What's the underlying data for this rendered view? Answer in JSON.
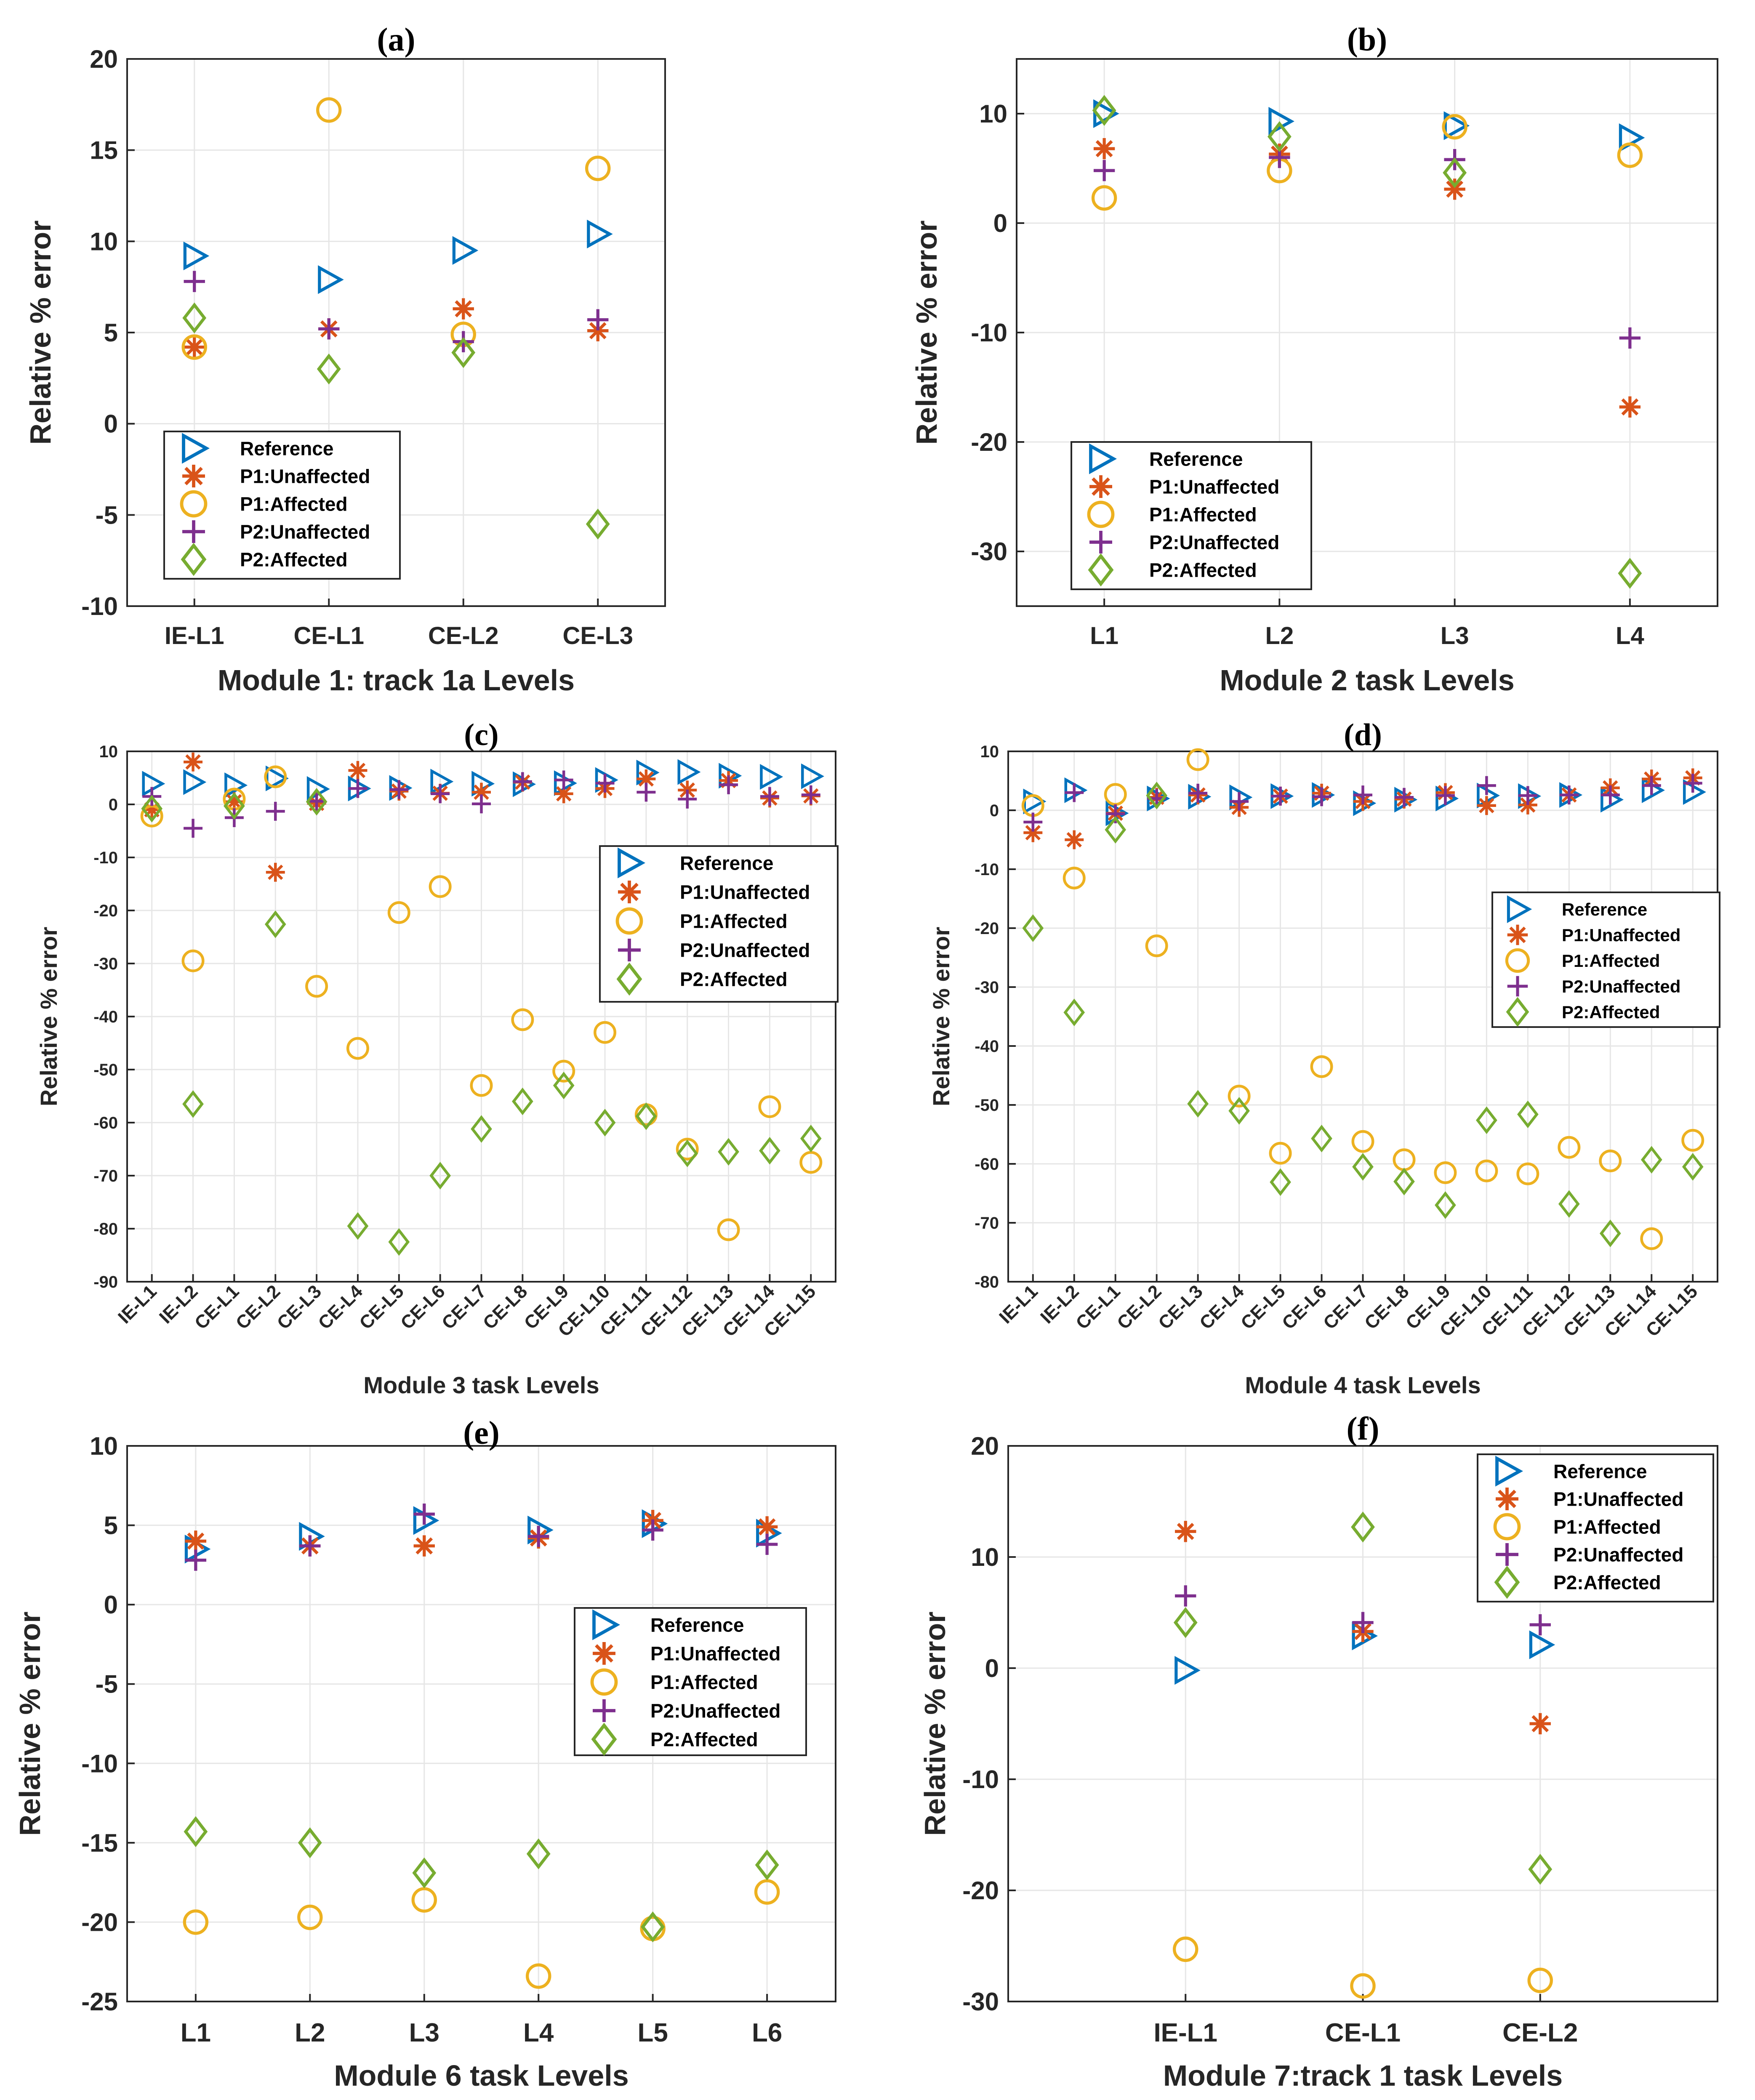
{
  "series_styles": [
    {
      "name": "Reference",
      "marker": "triangle-right",
      "color": "#0072BD"
    },
    {
      "name": "P1:Unaffected",
      "marker": "asterisk",
      "color": "#D95319"
    },
    {
      "name": "P1:Affected",
      "marker": "circle",
      "color": "#EDB120"
    },
    {
      "name": "P2:Unaffected",
      "marker": "plus",
      "color": "#7E2F8E"
    },
    {
      "name": "P2:Affected",
      "marker": "diamond",
      "color": "#77AC30"
    }
  ],
  "chart_data": [
    {
      "panel": "(a)",
      "type": "scatter",
      "xlabel": "Module 1: track 1a Levels",
      "ylabel": "Relative % error",
      "categories": [
        "IE-L1",
        "CE-L1",
        "CE-L2",
        "CE-L3"
      ],
      "ylim": [
        -10,
        20
      ],
      "yticks": [
        "20",
        "15",
        "10",
        "5",
        "0",
        "-5",
        "-10"
      ],
      "legend": "bottom-left",
      "series": [
        {
          "name": "Reference",
          "values": [
            9.2,
            7.9,
            9.5,
            10.4
          ]
        },
        {
          "name": "P1:Unaffected",
          "values": [
            4.2,
            5.2,
            6.3,
            5.1
          ]
        },
        {
          "name": "P1:Affected",
          "values": [
            4.2,
            17.2,
            4.9,
            14.0
          ]
        },
        {
          "name": "P2:Unaffected",
          "values": [
            7.8,
            5.2,
            4.5,
            5.7
          ]
        },
        {
          "name": "P2:Affected",
          "values": [
            5.8,
            3.0,
            3.9,
            -5.5
          ]
        }
      ]
    },
    {
      "panel": "(b)",
      "type": "scatter",
      "xlabel": "Module 2 task Levels",
      "ylabel": "Relative % error",
      "categories": [
        "L1",
        "L2",
        "L3",
        "L4"
      ],
      "ylim": [
        -35,
        15
      ],
      "yticks": [
        "10",
        "0",
        "-10",
        "-20",
        "-30"
      ],
      "legend": "bottom-left",
      "series": [
        {
          "name": "Reference",
          "values": [
            10.0,
            9.3,
            8.9,
            7.8
          ]
        },
        {
          "name": "P1:Unaffected",
          "values": [
            6.8,
            6.3,
            3.1,
            -16.8
          ]
        },
        {
          "name": "P1:Affected",
          "values": [
            2.3,
            4.8,
            8.8,
            6.2
          ]
        },
        {
          "name": "P2:Unaffected",
          "values": [
            4.8,
            6.0,
            5.8,
            -10.5
          ]
        },
        {
          "name": "P2:Affected",
          "values": [
            10.3,
            7.9,
            4.6,
            -32.0
          ]
        }
      ]
    },
    {
      "panel": "(c)",
      "type": "scatter",
      "xlabel": "Module 3 task Levels",
      "ylabel": "Relative % error",
      "categories": [
        "IE-L1",
        "IE-L2",
        "CE-L1",
        "CE-L2",
        "CE-L3",
        "CE-L4",
        "CE-L5",
        "CE-L6",
        "CE-L7",
        "CE-L8",
        "CE-L9",
        "CE-L10",
        "CE-L11",
        "CE-L12",
        "CE-L13",
        "CE-L14",
        "CE-L15"
      ],
      "ylim": [
        -90,
        10
      ],
      "yticks": [
        "10",
        "0",
        "-10",
        "-20",
        "-30",
        "-40",
        "-50",
        "-60",
        "-70",
        "-80",
        "-90"
      ],
      "legend": "upper-right",
      "series": [
        {
          "name": "Reference",
          "values": [
            3.9,
            4.2,
            3.6,
            4.9,
            2.9,
            3.0,
            3.1,
            4.3,
            3.9,
            3.8,
            4.0,
            4.6,
            6.0,
            6.1,
            5.4,
            5.2,
            5.3
          ]
        },
        {
          "name": "P1:Unaffected",
          "values": [
            -1.0,
            8.0,
            0.5,
            -12.8,
            0.2,
            6.4,
            2.5,
            2.1,
            2.3,
            4.2,
            2.0,
            3.0,
            4.8,
            2.7,
            4.5,
            1.2,
            1.6
          ]
        },
        {
          "name": "P1:Affected",
          "values": [
            -2.2,
            -29.5,
            1.0,
            5.2,
            -34.3,
            -46.0,
            -20.4,
            -15.5,
            -53.0,
            -40.6,
            -50.3,
            -43.0,
            -58.5,
            -65.0,
            -80.2,
            -57.0,
            -67.5
          ]
        },
        {
          "name": "P2:Unaffected",
          "values": [
            1.5,
            -4.5,
            -2.5,
            -1.3,
            0.6,
            3.0,
            2.8,
            2.0,
            0.1,
            4.3,
            4.6,
            4.0,
            2.3,
            1.0,
            3.7,
            1.5,
            1.8
          ]
        },
        {
          "name": "P2:Affected",
          "values": [
            -0.8,
            -56.5,
            -0.3,
            -22.6,
            0.5,
            -79.5,
            -82.5,
            -70.0,
            -61.2,
            -56.0,
            -53.0,
            -60.0,
            -58.8,
            -65.8,
            -65.5,
            -65.3,
            -63.0
          ]
        }
      ]
    },
    {
      "panel": "(d)",
      "type": "scatter",
      "xlabel": "Module 4 task Levels",
      "ylabel": "Relative % error",
      "categories": [
        "IE-L1",
        "IE-L2",
        "CE-L1",
        "CE-L2",
        "CE-L3",
        "CE-L4",
        "CE-L5",
        "CE-L6",
        "CE-L7",
        "CE-L8",
        "CE-L9",
        "CE-L10",
        "CE-L11",
        "CE-L12",
        "CE-L13",
        "CE-L14",
        "CE-L15"
      ],
      "ylim": [
        -80,
        10
      ],
      "yticks": [
        "10",
        "0",
        "-10",
        "-20",
        "-30",
        "-40",
        "-50",
        "-60",
        "-70",
        "-80"
      ],
      "legend": "upper-right",
      "series": [
        {
          "name": "Reference",
          "values": [
            1.5,
            3.4,
            -0.5,
            2.0,
            2.3,
            2.2,
            2.4,
            2.6,
            1.2,
            1.8,
            2.0,
            2.5,
            2.4,
            2.6,
            1.8,
            3.4,
            3.1
          ]
        },
        {
          "name": "P1:Unaffected",
          "values": [
            -3.8,
            -5.0,
            -0.5,
            2.2,
            2.6,
            0.5,
            2.4,
            2.9,
            1.5,
            1.9,
            3.0,
            0.8,
            0.9,
            2.6,
            3.8,
            5.3,
            5.5
          ]
        },
        {
          "name": "P1:Affected",
          "values": [
            0.8,
            -11.5,
            2.7,
            -23.0,
            8.6,
            -48.5,
            -58.2,
            -43.5,
            -56.2,
            -59.3,
            -61.5,
            -61.2,
            -61.7,
            -57.2,
            -59.5,
            -72.7,
            -56.0
          ]
        },
        {
          "name": "P2:Unaffected",
          "values": [
            -2.0,
            3.0,
            -0.6,
            2.0,
            2.9,
            1.5,
            2.4,
            2.3,
            2.6,
            2.2,
            2.5,
            4.2,
            2.5,
            2.6,
            2.6,
            4.2,
            4.6
          ]
        },
        {
          "name": "P2:Affected",
          "values": [
            -20.0,
            -34.3,
            -3.3,
            2.5,
            -49.8,
            -51.0,
            -63.1,
            -55.7,
            -60.5,
            -63.0,
            -67.0,
            -52.6,
            -51.6,
            -66.8,
            -71.8,
            -59.3,
            -60.5
          ]
        }
      ]
    },
    {
      "panel": "(e)",
      "type": "scatter",
      "xlabel": "Module 6 task Levels",
      "ylabel": "Relative % error",
      "categories": [
        "L1",
        "L2",
        "L3",
        "L4",
        "L5",
        "L6"
      ],
      "ylim": [
        -25,
        10
      ],
      "yticks": [
        "10",
        "5",
        "0",
        "-5",
        "-10",
        "-15",
        "-20",
        "-25"
      ],
      "legend": "middle-right",
      "series": [
        {
          "name": "Reference",
          "values": [
            3.5,
            4.3,
            5.3,
            4.7,
            5.1,
            4.5
          ]
        },
        {
          "name": "P1:Unaffected",
          "values": [
            4.0,
            3.7,
            3.7,
            4.2,
            5.3,
            4.9
          ]
        },
        {
          "name": "P1:Affected",
          "values": [
            -20.0,
            -19.7,
            -18.6,
            -23.4,
            -20.4,
            -18.1
          ]
        },
        {
          "name": "P2:Unaffected",
          "values": [
            2.8,
            3.7,
            5.7,
            4.3,
            4.7,
            3.8
          ]
        },
        {
          "name": "P2:Affected",
          "values": [
            -14.3,
            -15.0,
            -16.9,
            -15.7,
            -20.3,
            -16.4
          ]
        }
      ]
    },
    {
      "panel": "(f)",
      "type": "scatter",
      "xlabel": "Module 7:track 1 task Levels",
      "ylabel": "Relative % error",
      "categories": [
        "IE-L1",
        "CE-L1",
        "CE-L2"
      ],
      "ylim": [
        -30,
        20
      ],
      "yticks": [
        "20",
        "10",
        "0",
        "-10",
        "-20",
        "-30"
      ],
      "legend": "upper-right",
      "series": [
        {
          "name": "Reference",
          "values": [
            -0.2,
            2.9,
            2.1
          ]
        },
        {
          "name": "P1:Unaffected",
          "values": [
            12.3,
            3.3,
            -5.0
          ]
        },
        {
          "name": "P1:Affected",
          "values": [
            -25.3,
            -28.6,
            -28.1
          ]
        },
        {
          "name": "P2:Unaffected",
          "values": [
            6.5,
            4.1,
            3.9
          ]
        },
        {
          "name": "P2:Affected",
          "values": [
            4.1,
            12.7,
            -18.1
          ]
        }
      ]
    }
  ]
}
